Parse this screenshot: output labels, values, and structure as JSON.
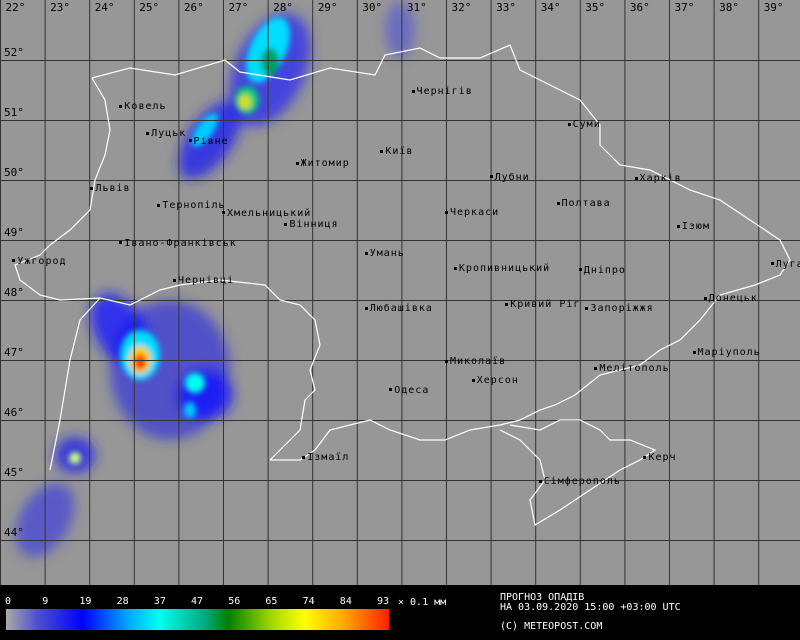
{
  "map": {
    "longitudes": [
      "22°",
      "23°",
      "24°",
      "25°",
      "26°",
      "27°",
      "28°",
      "29°",
      "30°",
      "31°",
      "32°",
      "33°",
      "34°",
      "35°",
      "36°",
      "37°",
      "38°",
      "39°"
    ],
    "latitudes": [
      "52°",
      "51°",
      "50°",
      "49°",
      "48°",
      "47°",
      "46°",
      "45°",
      "44°"
    ],
    "cities": [
      {
        "name": "Ковель",
        "lon": 24.7,
        "lat": 51.2
      },
      {
        "name": "Луцьк",
        "lon": 25.3,
        "lat": 50.75
      },
      {
        "name": "Рівне",
        "lon": 26.25,
        "lat": 50.62
      },
      {
        "name": "Житомир",
        "lon": 28.65,
        "lat": 50.25
      },
      {
        "name": "Київ",
        "lon": 30.55,
        "lat": 50.45
      },
      {
        "name": "Чернігів",
        "lon": 31.25,
        "lat": 51.45
      },
      {
        "name": "Суми",
        "lon": 34.75,
        "lat": 50.9
      },
      {
        "name": "Харків",
        "lon": 36.25,
        "lat": 50.0
      },
      {
        "name": "Львів",
        "lon": 24.05,
        "lat": 49.83
      },
      {
        "name": "Тернопіль",
        "lon": 25.55,
        "lat": 49.55
      },
      {
        "name": "Хмельницький",
        "lon": 27.0,
        "lat": 49.42
      },
      {
        "name": "Вінниця",
        "lon": 28.4,
        "lat": 49.23
      },
      {
        "name": "Лубни",
        "lon": 33.0,
        "lat": 50.02
      },
      {
        "name": "Полтава",
        "lon": 34.5,
        "lat": 49.58
      },
      {
        "name": "Черкаси",
        "lon": 32.0,
        "lat": 49.43
      },
      {
        "name": "Ізюм",
        "lon": 37.2,
        "lat": 49.2
      },
      {
        "name": "Івано-Франківськ",
        "lon": 24.7,
        "lat": 48.92
      },
      {
        "name": "Ужгород",
        "lon": 22.3,
        "lat": 48.62
      },
      {
        "name": "Умань",
        "lon": 30.2,
        "lat": 48.75
      },
      {
        "name": "Кропивницький",
        "lon": 32.2,
        "lat": 48.5
      },
      {
        "name": "Дніпро",
        "lon": 35.0,
        "lat": 48.47
      },
      {
        "name": "Луганськ",
        "lon": 39.3,
        "lat": 48.57
      },
      {
        "name": "Чернівці",
        "lon": 25.9,
        "lat": 48.3
      },
      {
        "name": "Любашівка",
        "lon": 30.2,
        "lat": 47.83
      },
      {
        "name": "Кривий Ріг",
        "lon": 33.35,
        "lat": 47.9
      },
      {
        "name": "Запоріжжя",
        "lon": 35.15,
        "lat": 47.83
      },
      {
        "name": "Донецьк",
        "lon": 37.8,
        "lat": 48.0
      },
      {
        "name": "Маріуполь",
        "lon": 37.55,
        "lat": 47.1
      },
      {
        "name": "Миколаїв",
        "lon": 32.0,
        "lat": 46.95
      },
      {
        "name": "Херсон",
        "lon": 32.6,
        "lat": 46.63
      },
      {
        "name": "Мелітополь",
        "lon": 35.35,
        "lat": 46.83
      },
      {
        "name": "Одеса",
        "lon": 30.75,
        "lat": 46.47
      },
      {
        "name": "Ізмаїл",
        "lon": 28.8,
        "lat": 45.35
      },
      {
        "name": "Керч",
        "lon": 36.45,
        "lat": 45.35
      },
      {
        "name": "Сімферополь",
        "lon": 34.1,
        "lat": 44.95
      }
    ]
  },
  "legend": {
    "ticks": [
      "0",
      "9",
      "19",
      "28",
      "37",
      "47",
      "56",
      "65",
      "74",
      "84",
      "93"
    ],
    "unit": "× 0.1 мм",
    "title": "ПРОГНОЗ ОПАДІВ",
    "valid_time": "НА 03.09.2020 15:00 +03:00 UTC",
    "credit": "(C) METEOPOST.COM",
    "colors": [
      "#aaaaaa",
      "#0000ff",
      "#00ffee",
      "#008000",
      "#ffff00",
      "#ff2000"
    ]
  }
}
